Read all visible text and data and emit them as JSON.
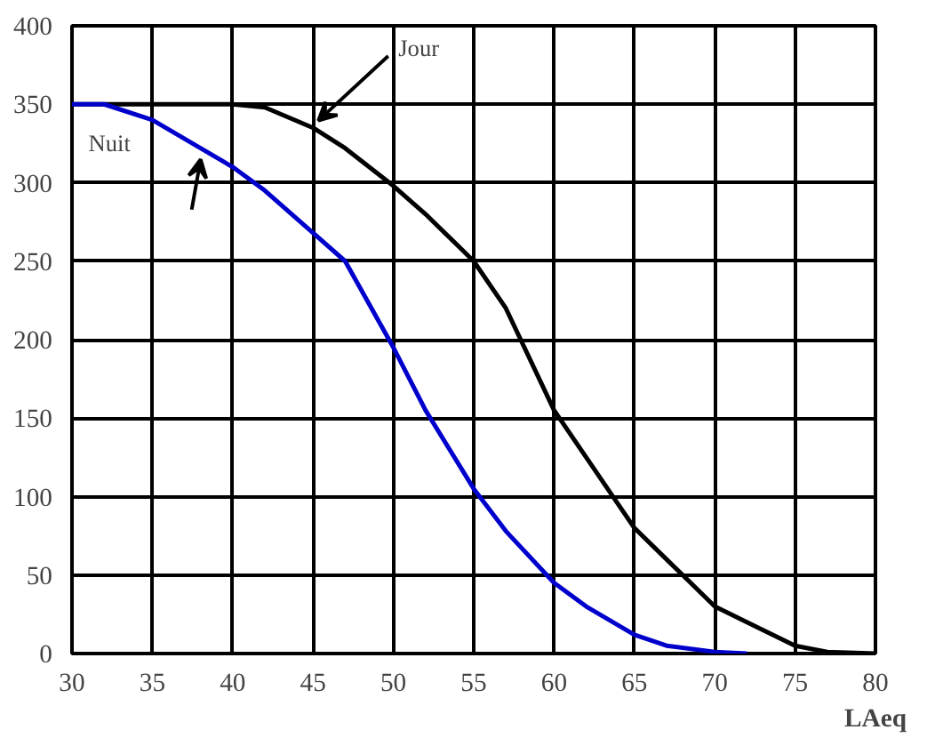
{
  "chart_data": {
    "type": "line",
    "xlabel": "LAeq",
    "xlim": [
      30,
      80
    ],
    "xticks": [
      30,
      35,
      40,
      45,
      50,
      55,
      60,
      65,
      70,
      75,
      80
    ],
    "ylim": [
      0,
      400
    ],
    "yticks": [
      0,
      50,
      100,
      150,
      200,
      250,
      300,
      350,
      400
    ],
    "grid": true,
    "marker": "none",
    "line_style": "solid",
    "series": [
      {
        "name": "Jour",
        "color": "#000000",
        "x": [
          30,
          40,
          42,
          45,
          47,
          50,
          52,
          55,
          57,
          60,
          62,
          65,
          67,
          70,
          72,
          75,
          77,
          80
        ],
        "values": [
          350,
          350,
          348,
          335,
          322,
          298,
          280,
          250,
          220,
          155,
          125,
          80,
          60,
          30,
          20,
          5,
          1,
          0
        ]
      },
      {
        "name": "Nuit",
        "color": "#0000cc",
        "x": [
          30,
          32,
          35,
          38,
          40,
          42,
          45,
          47,
          50,
          52,
          55,
          57,
          60,
          62,
          65,
          67,
          70,
          72
        ],
        "values": [
          350,
          350,
          340,
          322,
          310,
          295,
          268,
          250,
          195,
          155,
          105,
          78,
          45,
          30,
          12,
          5,
          1,
          0
        ]
      }
    ]
  }
}
